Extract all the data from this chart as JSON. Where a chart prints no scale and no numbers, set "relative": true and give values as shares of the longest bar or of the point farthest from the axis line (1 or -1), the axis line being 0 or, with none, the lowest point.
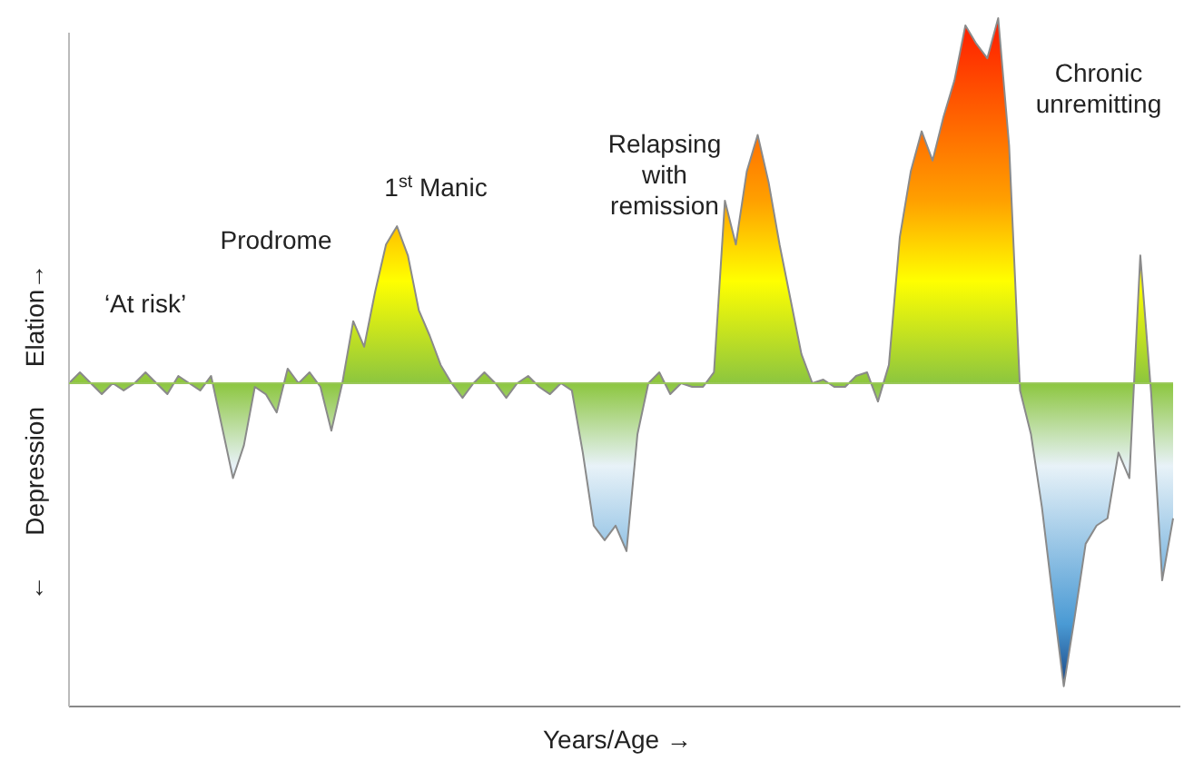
{
  "chart_data": {
    "type": "area",
    "relative": true,
    "xlabel": "Years/Age →",
    "ylabel": "← Depression Elation→",
    "annotations": [
      "‘At risk’",
      "Prodrome",
      "1$^{st}$ Manic",
      "Relapsing with remission",
      "Chronic unremitting"
    ],
    "ref_lines": [
      {
        "axis": "y",
        "value": 0,
        "color": "#9ac85a"
      }
    ],
    "categories": [
      null,
      null,
      null,
      null,
      null,
      null,
      null,
      null,
      null,
      null,
      null,
      null,
      null,
      null,
      null,
      null,
      null,
      null,
      null,
      null,
      null,
      null,
      null,
      null,
      null,
      null,
      null,
      null,
      null,
      null,
      null,
      null,
      null,
      null,
      null,
      null,
      null,
      null,
      null,
      null,
      null,
      null,
      null,
      null,
      null,
      null,
      null,
      null,
      null,
      null,
      null,
      null,
      null,
      null,
      null,
      null,
      null,
      null,
      null,
      null,
      null,
      null,
      null,
      null,
      null,
      null,
      null,
      null,
      null,
      null,
      null,
      null,
      null,
      null,
      null,
      null,
      null,
      null,
      null,
      null,
      null,
      null,
      null,
      null,
      null,
      null,
      null,
      null,
      null,
      null,
      null,
      null,
      null,
      null,
      null,
      null,
      null,
      null,
      null,
      null,
      null,
      null
    ],
    "series": [
      {
        "color": "#8a8a8a",
        "values": [
          0,
          0.03,
          0,
          -0.03,
          0,
          -0.02,
          0,
          0.03,
          0,
          -0.03,
          0.02,
          0,
          -0.02,
          0.02,
          -0.12,
          -0.26,
          -0.17,
          -0.01,
          -0.03,
          -0.08,
          0.04,
          0,
          0.03,
          -0.01,
          -0.13,
          0,
          0.17,
          0.1,
          0.25,
          0.38,
          0.43,
          0.35,
          0.2,
          0.13,
          0.05,
          0,
          -0.04,
          0,
          0.03,
          0,
          -0.04,
          0,
          0.02,
          -0.01,
          -0.03,
          0,
          -0.02,
          -0.19,
          -0.39,
          -0.43,
          -0.39,
          -0.46,
          -0.14,
          0,
          0.03,
          -0.03,
          0,
          -0.01,
          -0.01,
          0.03,
          0.5,
          0.38,
          0.58,
          0.68,
          0.55,
          0.38,
          0.23,
          0.08,
          0,
          0.01,
          -0.01,
          -0.01,
          0.02,
          0.03,
          -0.05,
          0.05,
          0.4,
          0.58,
          0.69,
          0.61,
          0.73,
          0.83,
          0.98,
          0.93,
          0.89,
          1,
          0.65,
          -0.02,
          -0.14,
          -0.34,
          -0.59,
          -0.83,
          -0.64,
          -0.44,
          -0.39,
          -0.37,
          -0.19,
          -0.26,
          0.35,
          -0.03,
          -0.54,
          -0.37
        ]
      }
    ]
  }
}
